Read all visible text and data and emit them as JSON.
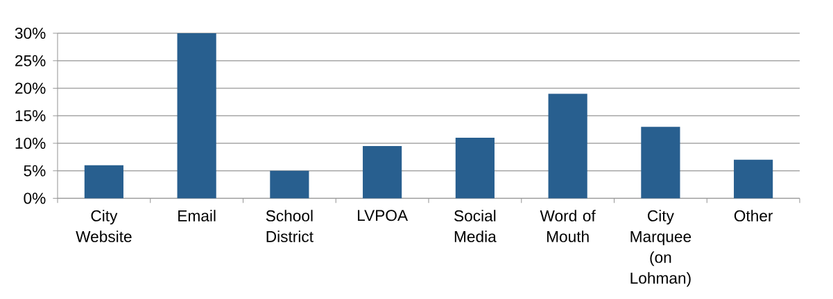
{
  "chart_data": {
    "type": "bar",
    "categories": [
      "City Website",
      "Email",
      "School District",
      "LVPOA",
      "Social Media",
      "Word of Mouth",
      "City Marquee (on Lohman)",
      "Other"
    ],
    "values": [
      6,
      30,
      5,
      9.5,
      11,
      19,
      13,
      7
    ],
    "color": "#285f8f",
    "ylim": [
      0,
      30
    ],
    "yticks": [
      {
        "value": 0,
        "label": "0%"
      },
      {
        "value": 5,
        "label": "5%"
      },
      {
        "value": 10,
        "label": "10%"
      },
      {
        "value": 15,
        "label": "15%"
      },
      {
        "value": 20,
        "label": "20%"
      },
      {
        "value": 25,
        "label": "25%"
      },
      {
        "value": 30,
        "label": "30%"
      }
    ],
    "grid": "y"
  }
}
